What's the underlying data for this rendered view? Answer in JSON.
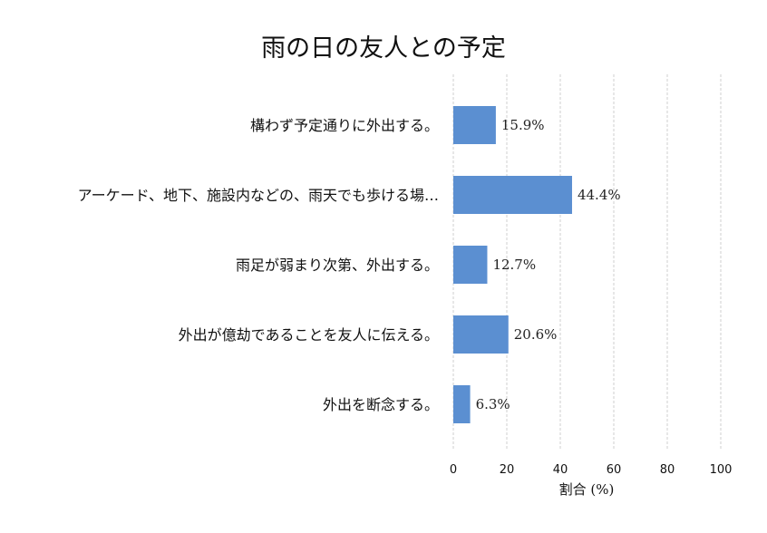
{
  "chart_data": {
    "type": "bar",
    "orientation": "horizontal",
    "title": "雨の日の友人との予定",
    "xlabel": "割合 (%)",
    "ylabel": "",
    "xlim": [
      0,
      100
    ],
    "xticks": [
      0,
      20,
      40,
      60,
      80,
      100
    ],
    "grid": "vertical-dashed",
    "bar_color": "#5b8fd1",
    "categories": [
      "構わず予定通りに外出する。",
      "アーケード、地下、施設内などの、雨天でも歩ける場…",
      "雨足が弱まり次第、外出する。",
      "外出が億劫であることを友人に伝える。",
      "外出を断念する。"
    ],
    "values": [
      15.9,
      44.4,
      12.7,
      20.6,
      6.3
    ],
    "value_labels": [
      "15.9%",
      "44.4%",
      "12.7%",
      "20.6%",
      "6.3%"
    ]
  }
}
